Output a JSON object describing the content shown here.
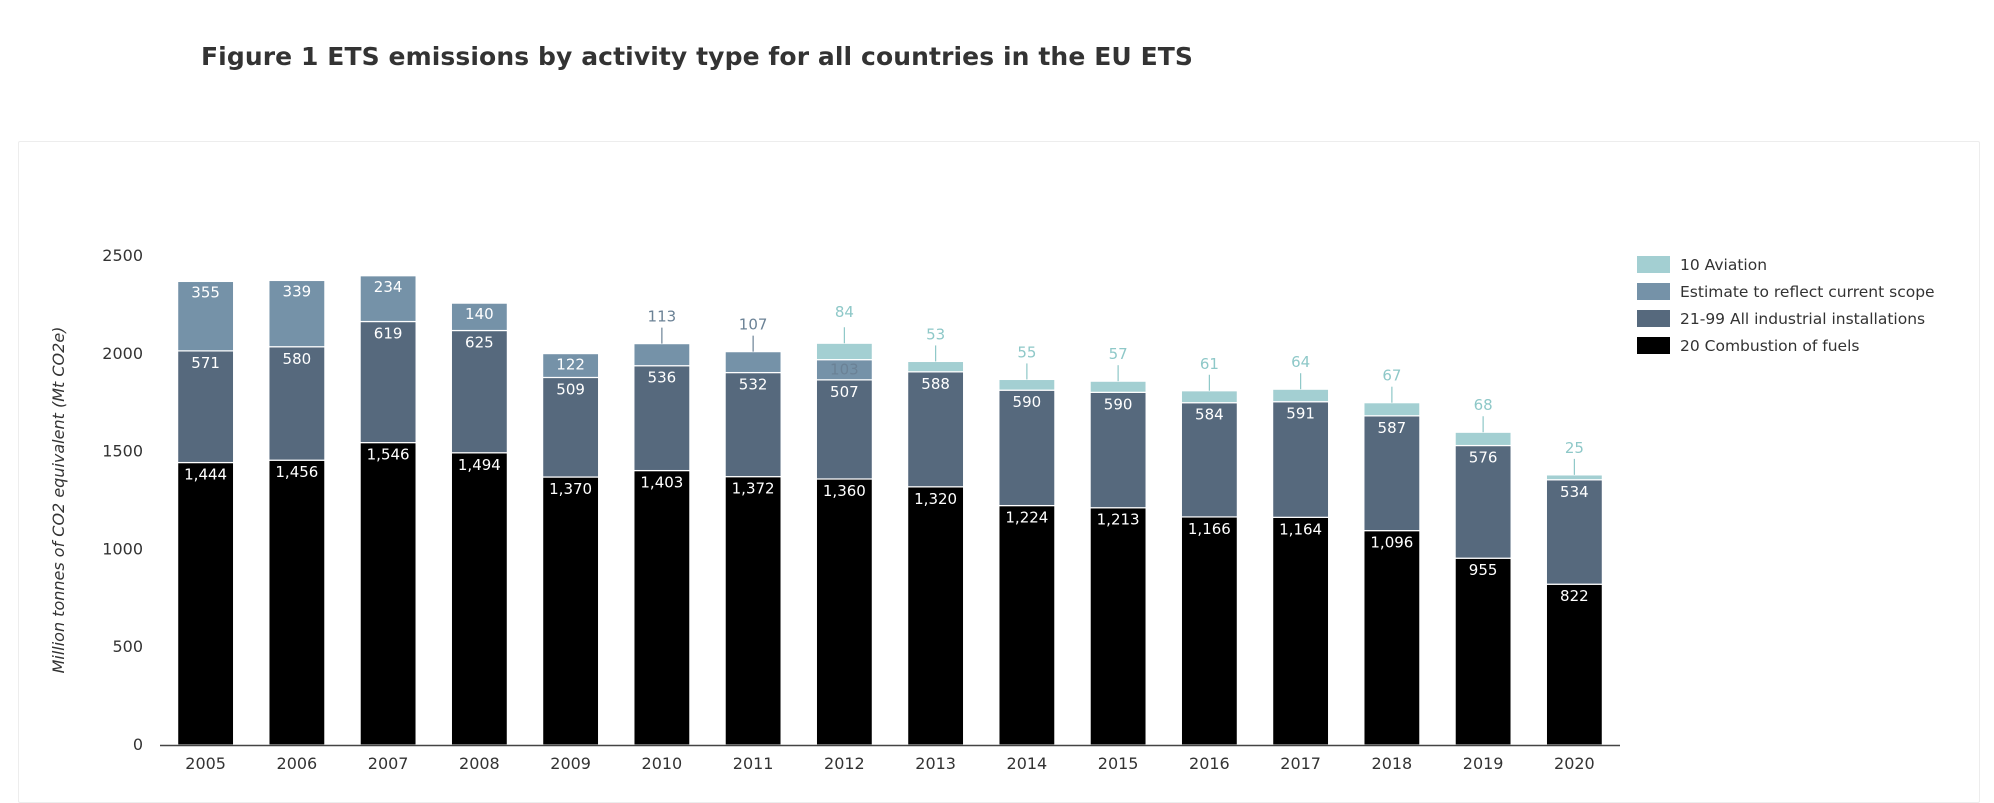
{
  "title": "Figure 1 ETS emissions by activity type for all countries in the EU ETS",
  "colors": {
    "aviation": "#a3cfd2",
    "estimate": "#7592a8",
    "industrial": "#56697d",
    "combustion": "#000000",
    "aviation_label": "#8ec8c8",
    "estimate_label": "#6b8296",
    "axis": "#333333"
  },
  "chart_data": {
    "type": "bar",
    "stacked": true,
    "title": "Figure 1 ETS emissions by activity type for all countries in the EU ETS",
    "ylabel": "Million tonnes of CO2 equivalent (Mt CO2e)",
    "xlabel": "",
    "ylim": [
      0,
      2500
    ],
    "yticks": [
      0,
      500,
      1000,
      1500,
      2000,
      2500
    ],
    "grid": false,
    "legend_position": "top-right",
    "categories": [
      "2005",
      "2006",
      "2007",
      "2008",
      "2009",
      "2010",
      "2011",
      "2012",
      "2013",
      "2014",
      "2015",
      "2016",
      "2017",
      "2018",
      "2019",
      "2020"
    ],
    "series": [
      {
        "name": "20 Combustion of fuels",
        "key": "combustion",
        "values": [
          1444,
          1456,
          1546,
          1494,
          1370,
          1403,
          1372,
          1360,
          1320,
          1224,
          1213,
          1166,
          1164,
          1096,
          955,
          822
        ],
        "labels": [
          "1,444",
          "1,456",
          "1,546",
          "1,494",
          "1,370",
          "1,403",
          "1,372",
          "1,360",
          "1,320",
          "1,224",
          "1,213",
          "1,166",
          "1,164",
          "1,096",
          "955",
          "822"
        ]
      },
      {
        "name": "21-99 All industrial installations",
        "key": "industrial",
        "values": [
          571,
          580,
          619,
          625,
          509,
          536,
          532,
          507,
          588,
          590,
          590,
          584,
          591,
          587,
          576,
          534
        ],
        "labels": [
          "571",
          "580",
          "619",
          "625",
          "509",
          "536",
          "532",
          "507",
          "588",
          "590",
          "590",
          "584",
          "591",
          "587",
          "576",
          "534"
        ]
      },
      {
        "name": "Estimate to reflect current scope",
        "key": "estimate",
        "values": [
          355,
          339,
          234,
          140,
          122,
          113,
          107,
          103,
          0,
          0,
          0,
          0,
          0,
          0,
          0,
          0
        ],
        "labels": [
          "355",
          "339",
          "234",
          "140",
          "122",
          "113",
          "107",
          "103",
          "",
          "",
          "",
          "",
          "",
          "",
          "",
          ""
        ]
      },
      {
        "name": "10 Aviation",
        "key": "aviation",
        "values": [
          0,
          0,
          0,
          0,
          0,
          0,
          0,
          84,
          53,
          55,
          57,
          61,
          64,
          67,
          68,
          25
        ],
        "labels": [
          "",
          "",
          "",
          "",
          "",
          "",
          "",
          "84",
          "53",
          "55",
          "57",
          "61",
          "64",
          "67",
          "68",
          "25"
        ]
      }
    ],
    "legend": [
      "10 Aviation",
      "Estimate to reflect current scope",
      "21-99 All industrial installations",
      "20 Combustion of fuels"
    ]
  }
}
